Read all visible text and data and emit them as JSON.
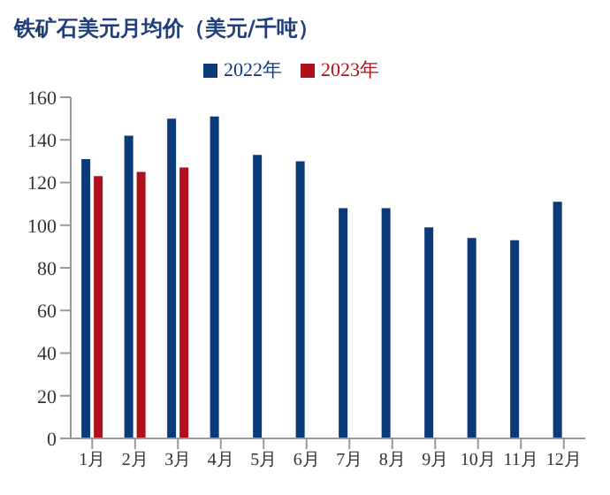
{
  "chart_data": {
    "type": "bar",
    "title": "铁矿石美元月均价（美元/千吨）",
    "categories": [
      "1月",
      "2月",
      "3月",
      "4月",
      "5月",
      "6月",
      "7月",
      "8月",
      "9月",
      "10月",
      "11月",
      "12月"
    ],
    "series": [
      {
        "name": "2022年",
        "color": "#0b3a78",
        "values": [
          131,
          142,
          150,
          151,
          133,
          130,
          108,
          108,
          99,
          94,
          93,
          111
        ]
      },
      {
        "name": "2023年",
        "color": "#b0101a",
        "values": [
          123,
          125,
          127,
          null,
          null,
          null,
          null,
          null,
          null,
          null,
          null,
          null
        ]
      }
    ],
    "ylim": [
      0,
      160
    ],
    "yticks": [
      0,
      20,
      40,
      60,
      80,
      100,
      120,
      140,
      160
    ],
    "grid": false,
    "legend": "top"
  }
}
